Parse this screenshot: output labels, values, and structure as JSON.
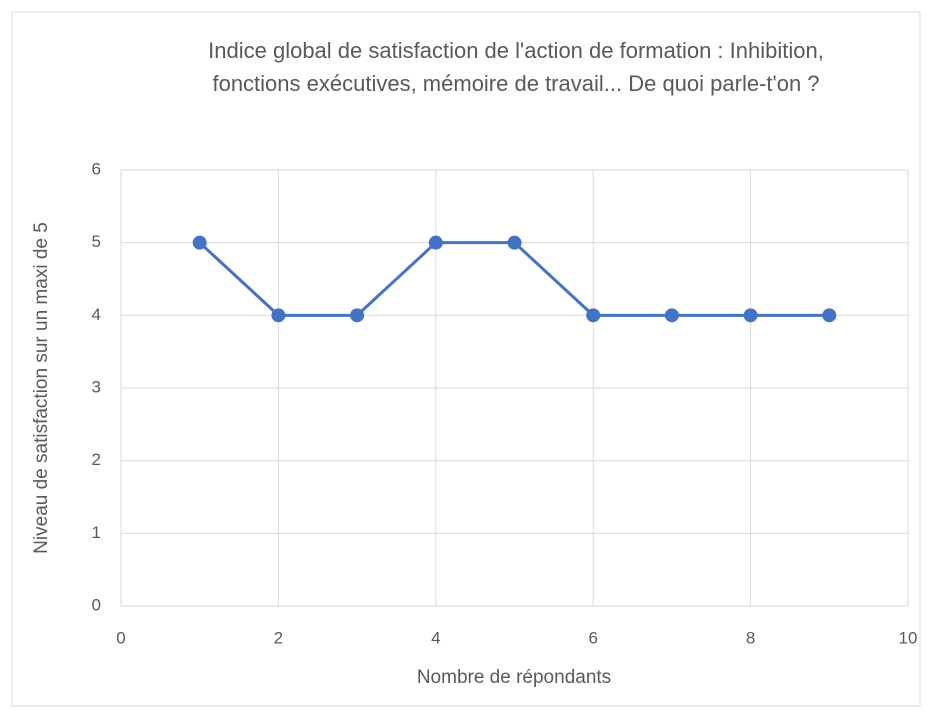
{
  "chart_data": {
    "type": "line",
    "title": "Indice global de satisfaction de l'action de formation  : Inhibition, fonctions exécutives, mémoire de travail... De quoi parle-t'on ?",
    "x_label": "Nombre de répondants",
    "y_label": "Niveau de satisfaction sur un maxi de 5",
    "x": [
      1,
      2,
      3,
      4,
      5,
      6,
      7,
      8,
      9
    ],
    "series": [
      {
        "color": "#4472c4",
        "values": [
          5,
          4,
          4,
          5,
          5,
          4,
          4,
          4,
          4
        ]
      }
    ],
    "xlim": [
      0,
      10
    ],
    "xticks": [
      0,
      2,
      4,
      6,
      8,
      10
    ],
    "ylim": [
      0,
      6
    ],
    "yticks": [
      0,
      1,
      2,
      3,
      4,
      5,
      6
    ],
    "grid": true
  }
}
